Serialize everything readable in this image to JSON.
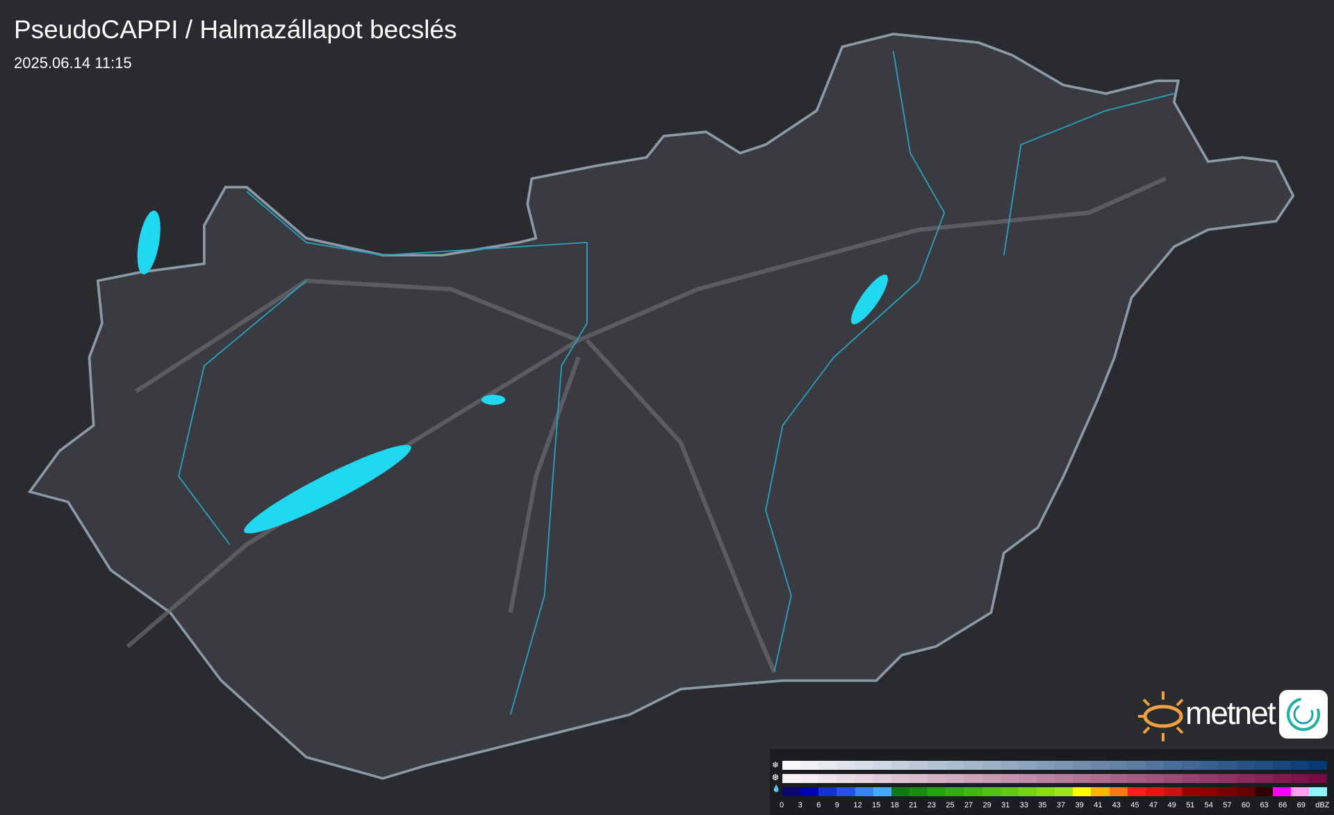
{
  "header": {
    "title": "PseudoCAPPI  / Halmazállapot becslés",
    "timestamp": "2025.06.14 11:15"
  },
  "logo": {
    "brand": "metnet",
    "sun_color": "#f0a040"
  },
  "legend": {
    "unit": "dBZ",
    "rows": [
      {
        "icon": "snowflake-icon",
        "glyph": "❄"
      },
      {
        "icon": "wet-snow-icon",
        "glyph": "❆"
      },
      {
        "icon": "raindrop-icon",
        "glyph": "💧"
      }
    ],
    "labels": [
      "0",
      "3",
      "6",
      "9",
      "12",
      "15",
      "18",
      "21",
      "23",
      "25",
      "27",
      "29",
      "31",
      "33",
      "35",
      "37",
      "39",
      "41",
      "43",
      "45",
      "47",
      "49",
      "51",
      "54",
      "57",
      "60",
      "63",
      "66",
      "69"
    ],
    "rain_colors": [
      "#0a0a6e",
      "#0000b4",
      "#1432d2",
      "#2850e6",
      "#3c82f0",
      "#46aaff",
      "#147814",
      "#1e8c14",
      "#28a014",
      "#37aa14",
      "#46b414",
      "#55c014",
      "#64c814",
      "#78d214",
      "#8cdc14",
      "#a0e61e",
      "#ffff00",
      "#ffb400",
      "#ff7814",
      "#ff1e1e",
      "#e61414",
      "#c81414",
      "#960000",
      "#8c0000",
      "#780000",
      "#640000",
      "#320000",
      "#ff00ff",
      "#ffa0f0",
      "#8cf5ff"
    ],
    "snow_start": "#f8f8fa",
    "snow_end": "#063a72",
    "wet_start": "#f8f4f6",
    "wet_end": "#7a0a44"
  },
  "colors": {
    "background": "#2a2b2f",
    "country": "#3a3b40",
    "border": "#8a9aa6",
    "rivers": "#2aa0c0",
    "lakes": "#20d8f0"
  }
}
